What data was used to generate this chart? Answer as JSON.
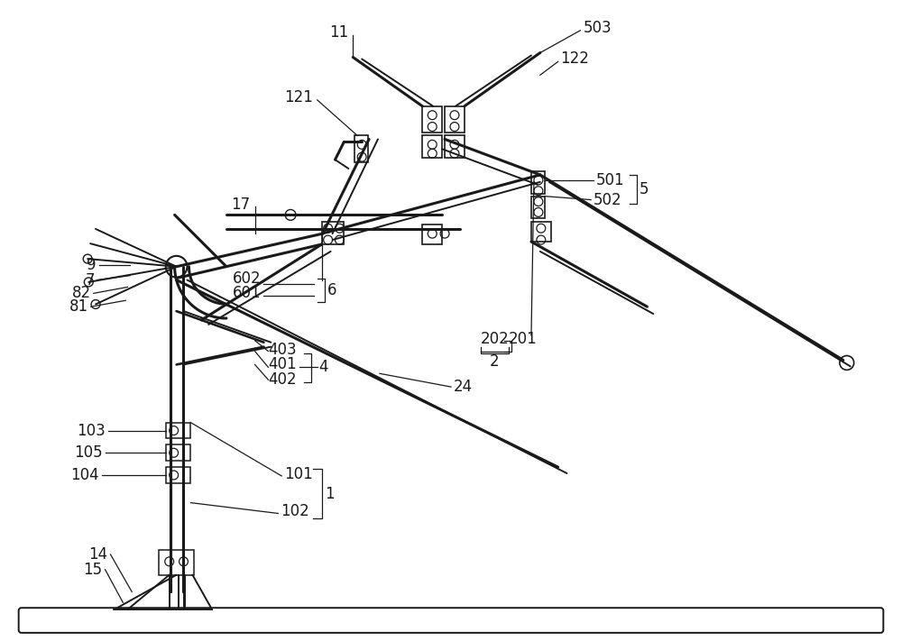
{
  "bg_color": "#ffffff",
  "lc": "#1a1a1a",
  "lw": 1.4,
  "tlw": 2.2,
  "fig_width": 10.0,
  "fig_height": 7.11,
  "fs": 12
}
